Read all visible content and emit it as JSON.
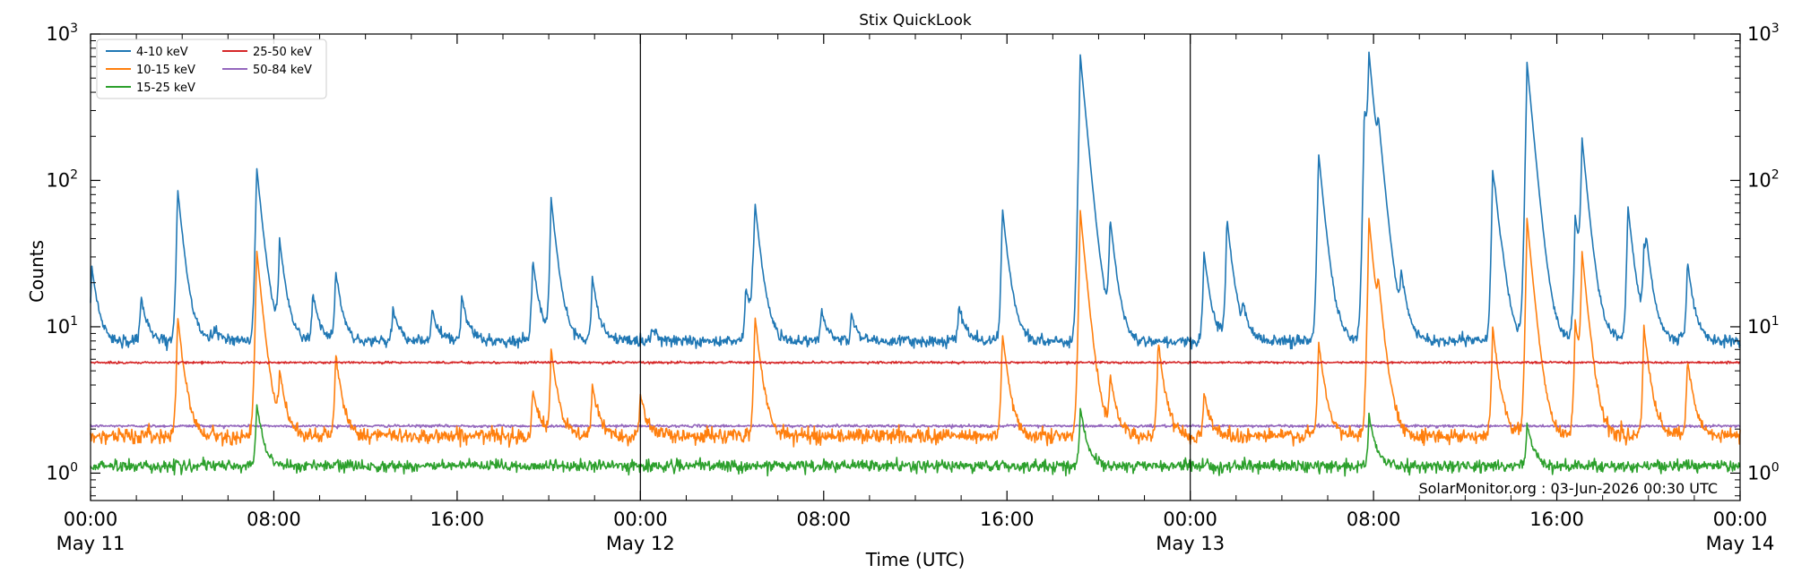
{
  "chart_data": {
    "type": "line",
    "title": "Stix QuickLook",
    "xlabel": "Time (UTC)",
    "ylabel": "Counts",
    "yscale": "log",
    "ylim": [
      0.65,
      1000
    ],
    "xlim": [
      0,
      72
    ],
    "x_unit": "hours since 11 May 00:00 UTC",
    "y_ticks": [
      {
        "value": 1,
        "base": "10",
        "exp": "0"
      },
      {
        "value": 10,
        "base": "10",
        "exp": "1"
      },
      {
        "value": 100,
        "base": "10",
        "exp": "2"
      },
      {
        "value": 1000,
        "base": "10",
        "exp": "3"
      }
    ],
    "x_ticks": [
      {
        "hour": 0,
        "time": "00:00",
        "date": "May 11"
      },
      {
        "hour": 8,
        "time": "08:00",
        "date": ""
      },
      {
        "hour": 16,
        "time": "16:00",
        "date": ""
      },
      {
        "hour": 24,
        "time": "00:00",
        "date": "May 12"
      },
      {
        "hour": 32,
        "time": "08:00",
        "date": ""
      },
      {
        "hour": 40,
        "time": "16:00",
        "date": ""
      },
      {
        "hour": 48,
        "time": "00:00",
        "date": "May 13"
      },
      {
        "hour": 56,
        "time": "08:00",
        "date": ""
      },
      {
        "hour": 64,
        "time": "16:00",
        "date": ""
      },
      {
        "hour": 72,
        "time": "00:00",
        "date": "May 14"
      }
    ],
    "day_boundaries": [
      24,
      48
    ],
    "legend_position": "top-left",
    "grid": false,
    "annotation": "SolarMonitor.org : 03-Jun-2026 00:30 UTC",
    "series": [
      {
        "name": "4-10 keV",
        "color": "#1f77b4",
        "baseline": 8,
        "noise": 0.045,
        "peaks": [
          [
            0.05,
            26
          ],
          [
            2.2,
            16
          ],
          [
            3.8,
            88
          ],
          [
            5.4,
            10
          ],
          [
            7.25,
            125
          ],
          [
            8.25,
            38
          ],
          [
            9.7,
            17
          ],
          [
            10.7,
            24
          ],
          [
            13.2,
            13
          ],
          [
            14.9,
            13
          ],
          [
            16.2,
            16
          ],
          [
            19.3,
            29
          ],
          [
            20.1,
            75
          ],
          [
            21.9,
            22
          ],
          [
            24.5,
            10
          ],
          [
            28.6,
            19
          ],
          [
            28.9,
            17
          ],
          [
            29.0,
            63
          ],
          [
            31.9,
            13
          ],
          [
            33.2,
            12
          ],
          [
            37.9,
            14
          ],
          [
            39.8,
            65
          ],
          [
            43.2,
            720
          ],
          [
            44.5,
            52
          ],
          [
            48.6,
            32
          ],
          [
            49.6,
            55
          ],
          [
            50.3,
            12
          ],
          [
            53.6,
            155
          ],
          [
            55.6,
            300
          ],
          [
            55.8,
            620
          ],
          [
            56.2,
            135
          ],
          [
            57.2,
            20
          ],
          [
            61.2,
            115
          ],
          [
            61.3,
            21
          ],
          [
            61.6,
            12
          ],
          [
            62.7,
            640
          ],
          [
            64.8,
            58
          ],
          [
            65.1,
            180
          ],
          [
            67.1,
            68
          ],
          [
            67.8,
            30
          ],
          [
            67.9,
            25
          ],
          [
            69.7,
            28
          ]
        ]
      },
      {
        "name": "10-15 keV",
        "color": "#ff7f0e",
        "baseline": 1.8,
        "noise": 0.06,
        "peaks": [
          [
            3.8,
            12
          ],
          [
            7.25,
            34
          ],
          [
            8.25,
            4.5
          ],
          [
            10.7,
            6.5
          ],
          [
            19.3,
            3.8
          ],
          [
            20.1,
            7
          ],
          [
            21.9,
            4
          ],
          [
            24.0,
            3.5
          ],
          [
            29.0,
            12
          ],
          [
            39.8,
            9
          ],
          [
            43.2,
            62
          ],
          [
            44.5,
            4.5
          ],
          [
            46.6,
            8
          ],
          [
            48.6,
            3.5
          ],
          [
            53.6,
            8
          ],
          [
            55.8,
            55
          ],
          [
            56.2,
            12
          ],
          [
            61.2,
            10
          ],
          [
            62.7,
            55
          ],
          [
            64.8,
            11
          ],
          [
            65.1,
            30
          ],
          [
            67.8,
            10
          ],
          [
            69.7,
            6
          ]
        ]
      },
      {
        "name": "15-25 keV",
        "color": "#2ca02c",
        "baseline": 1.12,
        "noise": 0.045,
        "peaks": [
          [
            7.25,
            3
          ],
          [
            43.2,
            2.8
          ],
          [
            55.8,
            2.5
          ],
          [
            62.7,
            2.2
          ]
        ]
      },
      {
        "name": "25-50 keV",
        "color": "#d62728",
        "baseline": 5.7,
        "noise": 0.008,
        "peaks": []
      },
      {
        "name": "50-84 keV",
        "color": "#9467bd",
        "baseline": 2.1,
        "noise": 0.01,
        "peaks": []
      }
    ]
  }
}
